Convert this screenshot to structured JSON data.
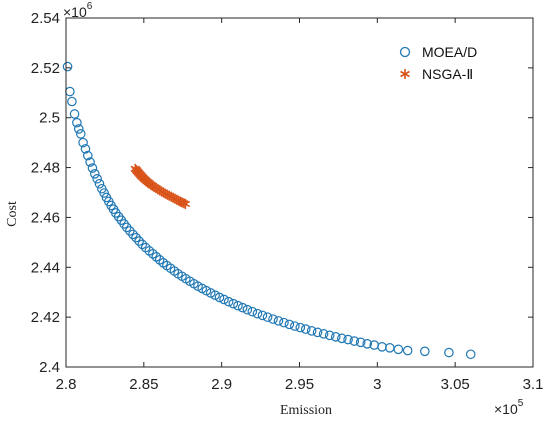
{
  "chart_data": {
    "type": "scatter",
    "xlabel": "Emission",
    "ylabel": "Cost",
    "x_multiplier": "×10",
    "x_exponent": "5",
    "y_multiplier": "×10",
    "y_exponent": "6",
    "xlim": [
      2.8,
      3.1
    ],
    "ylim": [
      2.4,
      2.54
    ],
    "xticks": [
      2.8,
      2.85,
      2.9,
      2.95,
      3.0,
      3.05,
      3.1
    ],
    "xtick_labels": [
      "2.8",
      "2.85",
      "2.9",
      "2.95",
      "3",
      "3.05",
      "3.1"
    ],
    "yticks": [
      2.4,
      2.42,
      2.44,
      2.46,
      2.48,
      2.5,
      2.52,
      2.54
    ],
    "ytick_labels": [
      "2.4",
      "2.42",
      "2.44",
      "2.46",
      "2.48",
      "2.5",
      "2.52",
      "2.54"
    ],
    "grid": false,
    "legend_position": "top-right",
    "series": [
      {
        "name": "MOEA/D",
        "marker": "circle",
        "color": "#1f77b4",
        "x": [
          2.801,
          2.8025,
          2.8038,
          2.8055,
          2.807,
          2.8082,
          2.8095,
          2.811,
          2.8125,
          2.814,
          2.8155,
          2.817,
          2.8185,
          2.82,
          2.8215,
          2.823,
          2.8245,
          2.826,
          2.8275,
          2.829,
          2.8305,
          2.832,
          2.8338,
          2.8355,
          2.8373,
          2.839,
          2.841,
          2.843,
          2.845,
          2.847,
          2.849,
          2.8512,
          2.8535,
          2.8558,
          2.858,
          2.8602,
          2.8625,
          2.8648,
          2.8672,
          2.8696,
          2.872,
          2.8745,
          2.877,
          2.8796,
          2.8822,
          2.8848,
          2.8875,
          2.8902,
          2.893,
          2.8958,
          2.8986,
          2.9015,
          2.9045,
          2.9075,
          2.9105,
          2.9135,
          2.9165,
          2.9197,
          2.923,
          2.9262,
          2.9295,
          2.933,
          2.9365,
          2.94,
          2.9435,
          2.947,
          2.9505,
          2.954,
          2.9578,
          2.9616,
          2.9655,
          2.9694,
          2.9733,
          2.9772,
          2.9812,
          2.9852,
          2.9893,
          2.9935,
          2.998,
          3.003,
          3.008,
          3.0135,
          3.0195,
          3.0305,
          3.046,
          3.06
        ],
        "y": [
          2.5205,
          2.5105,
          2.5065,
          2.5015,
          2.498,
          2.4955,
          2.4935,
          2.49,
          2.4875,
          2.4848,
          2.4822,
          2.4798,
          2.4775,
          2.4755,
          2.4735,
          2.4715,
          2.4698,
          2.468,
          2.4664,
          2.4648,
          2.4633,
          2.4618,
          2.4603,
          2.4589,
          2.4574,
          2.456,
          2.4546,
          2.4532,
          2.4519,
          2.4505,
          2.4492,
          2.4479,
          2.4466,
          2.4454,
          2.4442,
          2.443,
          2.4418,
          2.4407,
          2.4396,
          2.4385,
          2.4374,
          2.4364,
          2.4354,
          2.4344,
          2.4334,
          2.4324,
          2.4315,
          2.4306,
          2.4297,
          2.4288,
          2.4279,
          2.4271,
          2.4262,
          2.4254,
          2.4246,
          2.4238,
          2.423,
          2.4222,
          2.4214,
          2.4207,
          2.42,
          2.4192,
          2.4185,
          2.4178,
          2.4171,
          2.4164,
          2.4158,
          2.4152,
          2.4145,
          2.4139,
          2.4133,
          2.4127,
          2.4121,
          2.4115,
          2.411,
          2.4104,
          2.4099,
          2.4093,
          2.4088,
          2.4081,
          2.4077,
          2.4071,
          2.4066,
          2.4063,
          2.4058,
          2.4051
        ]
      },
      {
        "name": "NSGA-Ⅱ",
        "marker": "asterisk",
        "color": "#d95319",
        "x": [
          2.8445,
          2.8452,
          2.8458,
          2.8465,
          2.8472,
          2.8479,
          2.8486,
          2.8494,
          2.8502,
          2.851,
          2.8519,
          2.8528,
          2.8537,
          2.8547,
          2.8557,
          2.8568,
          2.8579,
          2.859,
          2.8602,
          2.8614,
          2.8626,
          2.8638,
          2.8651,
          2.8663,
          2.8676,
          2.8688,
          2.87,
          2.8712,
          2.8724,
          2.8735,
          2.8746,
          2.8757,
          2.8767
        ],
        "y": [
          2.4795,
          2.479,
          2.4785,
          2.478,
          2.4775,
          2.477,
          2.4765,
          2.476,
          2.4755,
          2.475,
          2.4745,
          2.4741,
          2.4736,
          2.4731,
          2.4727,
          2.4722,
          2.4718,
          2.4713,
          2.4709,
          2.4704,
          2.47,
          2.4695,
          2.4691,
          2.4687,
          2.4683,
          2.4679,
          2.4675,
          2.4671,
          2.4667,
          2.4663,
          2.466,
          2.4657,
          2.4654
        ]
      }
    ]
  }
}
